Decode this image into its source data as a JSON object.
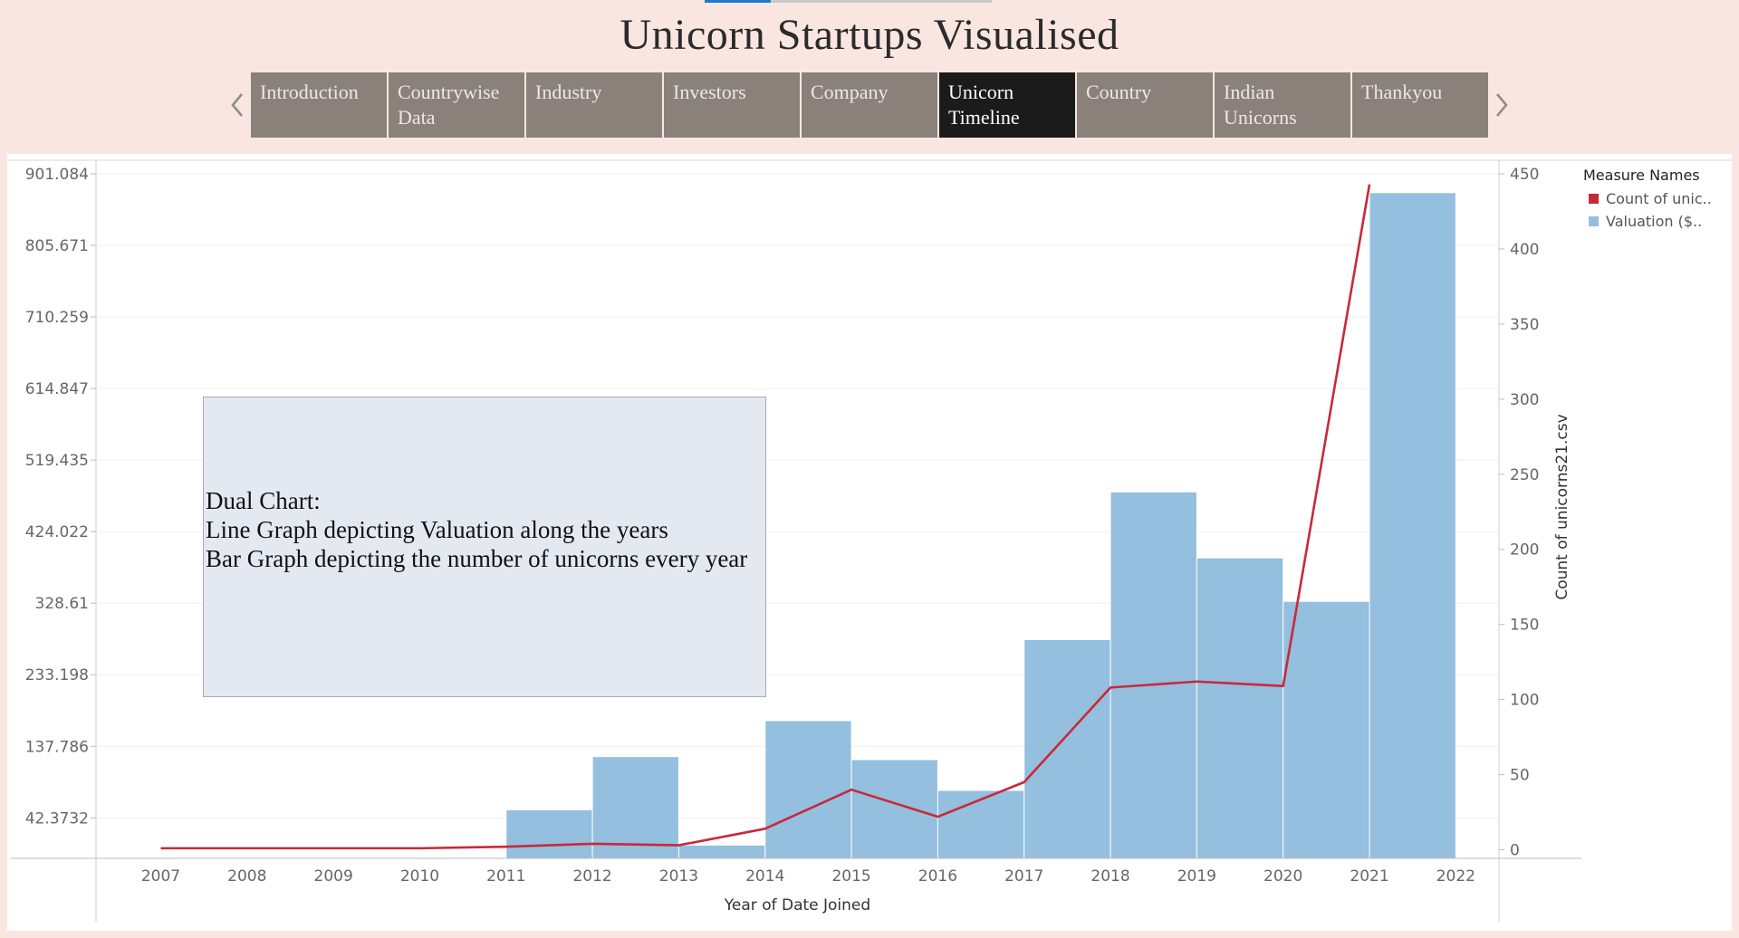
{
  "page": {
    "title": "Unicorn Startups Visualised"
  },
  "nav": {
    "tabs": [
      {
        "label": "Introduction",
        "active": false
      },
      {
        "label": "Countrywise Data",
        "active": false
      },
      {
        "label": "Industry",
        "active": false
      },
      {
        "label": "Investors",
        "active": false
      },
      {
        "label": "Company",
        "active": false
      },
      {
        "label": "Unicorn Timeline",
        "active": true
      },
      {
        "label": "Country",
        "active": false
      },
      {
        "label": "Indian Unicorns",
        "active": false
      },
      {
        "label": "Thankyou",
        "active": false
      }
    ],
    "prev_icon": "chevron-left-icon",
    "next_icon": "chevron-right-icon"
  },
  "note": {
    "lines": [
      "Dual Chart:",
      "Line Graph depicting Valuation along the years",
      "Bar Graph depicting the number of unicorns every year"
    ]
  },
  "legend": {
    "title": "Measure Names",
    "items": [
      {
        "label": "Count of unic..",
        "color": "#c8293a"
      },
      {
        "label": "Valuation ($..",
        "color": "#94bfdf"
      }
    ]
  },
  "chart_data": {
    "type": "bar",
    "categories": [
      "2007",
      "2008",
      "2009",
      "2010",
      "2011",
      "2012",
      "2013",
      "2014",
      "2015",
      "2016",
      "2017",
      "2018",
      "2019",
      "2020",
      "2021",
      "2022"
    ],
    "series": [
      {
        "name": "Valuation ($..",
        "type": "bar",
        "axis": "left",
        "color": "#94bfdf",
        "values": [
          0,
          0,
          0,
          0,
          53,
          124,
          6,
          172,
          120,
          79,
          280,
          477,
          389,
          331,
          876,
          null
        ]
      },
      {
        "name": "Count of unic..",
        "type": "line",
        "axis": "right",
        "color": "#c8293a",
        "values": [
          1,
          1,
          1,
          1,
          2,
          4,
          3,
          14,
          40,
          22,
          45,
          108,
          112,
          109,
          443,
          null
        ]
      }
    ],
    "xlabel": "Year of Date Joined",
    "ylabel": "",
    "y2label": "Count of unicorns21.csv",
    "ylim": [
      -11.6,
      901.084
    ],
    "y2lim": [
      -5.7,
      450
    ],
    "yticks": [
      "901.084",
      "805.671",
      "710.259",
      "614.847",
      "519.435",
      "424.022",
      "328.61",
      "233.198",
      "137.786",
      "42.3732"
    ],
    "ytick_values": [
      901.084,
      805.671,
      710.259,
      614.847,
      519.435,
      424.022,
      328.61,
      233.198,
      137.786,
      42.3732
    ],
    "y2ticks": [
      "450",
      "400",
      "350",
      "300",
      "250",
      "200",
      "150",
      "100",
      "50",
      "0"
    ],
    "y2tick_values": [
      450,
      400,
      350,
      300,
      250,
      200,
      150,
      100,
      50,
      0
    ],
    "grid": true,
    "legend_position": "right"
  }
}
